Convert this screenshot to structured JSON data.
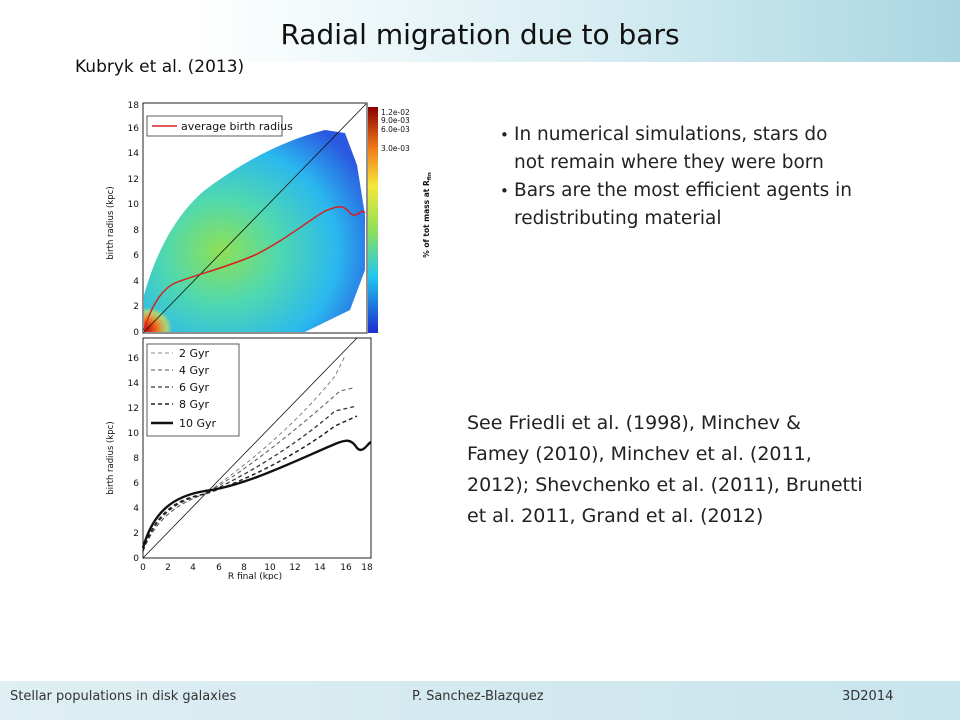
{
  "slide": {
    "title": "Radial migration due to bars",
    "subtitle": "Kubryk et al. (2013)",
    "bullets": [
      "In numerical simulations, stars do not remain where they were born",
      "Bars are the most efficient agents in redistributing material"
    ],
    "references": "See Friedli et al. (1998), Minchev & Famey (2010), Minchev et al. (2011, 2012);  Shevchenko et al. (2011), Brunetti et al. 2011, Grand et al. (2012)"
  },
  "footer": {
    "left": "Stellar populations in disk galaxies",
    "center": "P. Sanchez-Blazquez",
    "right": "3D2014"
  },
  "figure": {
    "top_panel": {
      "ylabel": "birth radius (kpc)",
      "y_ticks": [
        "0",
        "2",
        "4",
        "6",
        "8",
        "10",
        "12",
        "14",
        "16",
        "18"
      ],
      "legend": "average birth radius",
      "colorbar_label": "% of tot mass at R",
      "colorbar_label_sub": "fin",
      "colorbar_ticks": [
        "1.2e-02",
        "9.0e-03",
        "6.0e-03",
        "3.0e-03"
      ],
      "avg_curve_color": "#d62020"
    },
    "bottom_panel": {
      "ylabel": "birth radius (kpc)",
      "xlabel": "R final (kpc)",
      "x_ticks": [
        "0",
        "2",
        "4",
        "6",
        "8",
        "10",
        "12",
        "14",
        "16",
        "18"
      ],
      "y_ticks": [
        "0",
        "2",
        "4",
        "6",
        "8",
        "10",
        "12",
        "14",
        "16"
      ],
      "legend": [
        "2 Gyr",
        "4 Gyr",
        "6 Gyr",
        "8 Gyr",
        "10 Gyr"
      ]
    }
  }
}
